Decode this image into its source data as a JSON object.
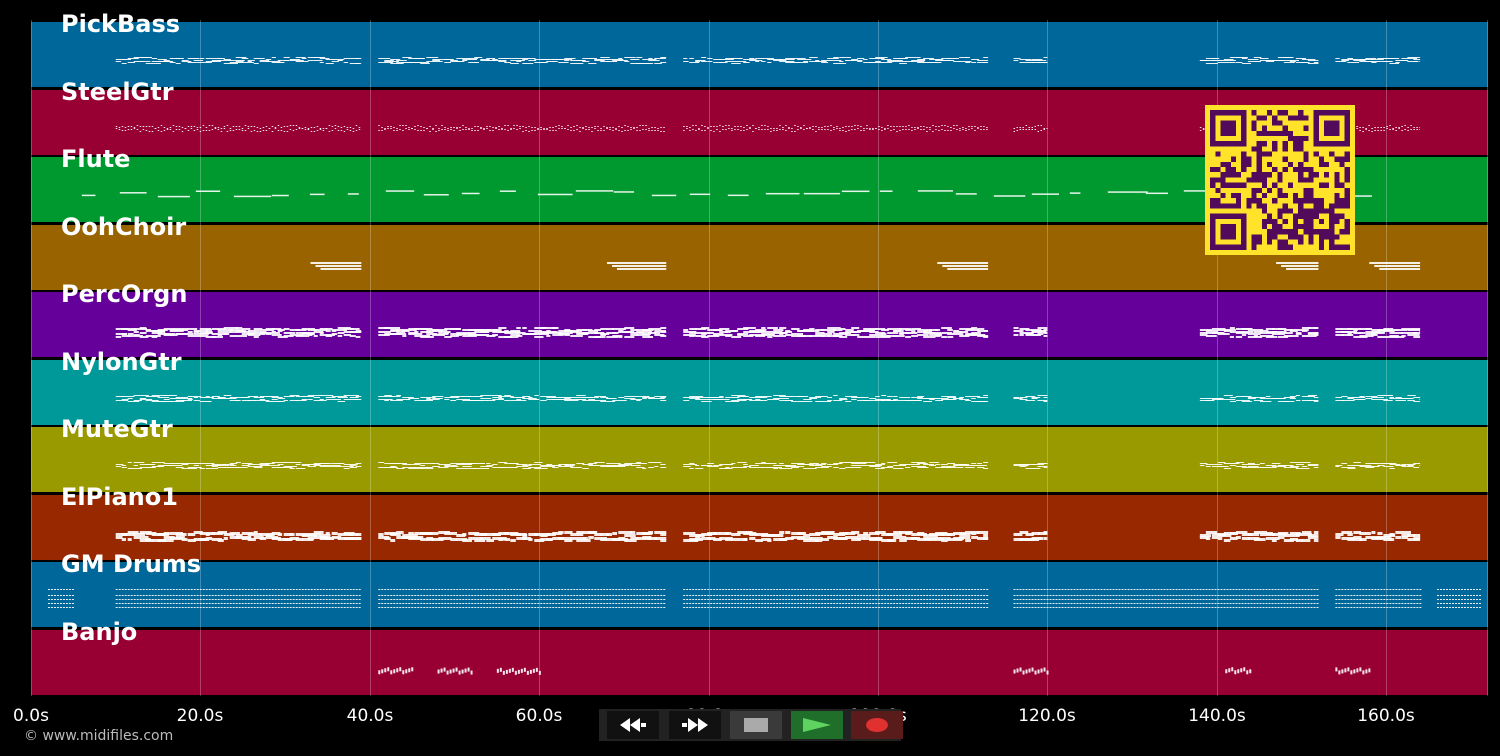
{
  "tracks": [
    {
      "name": "PickBass",
      "color": "#00679a",
      "style": "dash"
    },
    {
      "name": "SteelGtr",
      "color": "#980033",
      "style": "dense"
    },
    {
      "name": "Flute",
      "color": "#00992f",
      "style": "sparse"
    },
    {
      "name": "OohChoir",
      "color": "#996300",
      "style": "chord"
    },
    {
      "name": "PercOrgn",
      "color": "#65009a",
      "style": "bars"
    },
    {
      "name": "NylonGtr",
      "color": "#009999",
      "style": "wave"
    },
    {
      "name": "MuteGtr",
      "color": "#999900",
      "style": "dots"
    },
    {
      "name": "ElPiano1",
      "color": "#982800",
      "style": "thick"
    },
    {
      "name": "GM Drums",
      "color": "#00679a",
      "style": "drums"
    },
    {
      "name": "Banjo",
      "color": "#980033",
      "style": "bursts"
    }
  ],
  "timeline": {
    "ticks": [
      "0.0s",
      "20.0s",
      "40.0s",
      "60.0s",
      "80.0s",
      "100.0s",
      "120.0s",
      "140.0s",
      "160.0s"
    ],
    "tick_seconds": [
      0,
      20,
      40,
      60,
      80,
      100,
      120,
      140,
      160
    ]
  },
  "copyright": "© www.midifiles.com",
  "transport": {
    "buttons": [
      {
        "name": "rewind-button",
        "icon": "rewind-icon"
      },
      {
        "name": "fast-forward-button",
        "icon": "fast-forward-icon"
      },
      {
        "name": "stop-button",
        "icon": "stop-icon"
      },
      {
        "name": "play-button",
        "icon": "play-icon"
      },
      {
        "name": "record-button",
        "icon": "record-icon"
      }
    ]
  },
  "qr_code": {
    "icon": "qr-code-icon",
    "color": "#ffe22a",
    "module_color": "#520a5b"
  }
}
